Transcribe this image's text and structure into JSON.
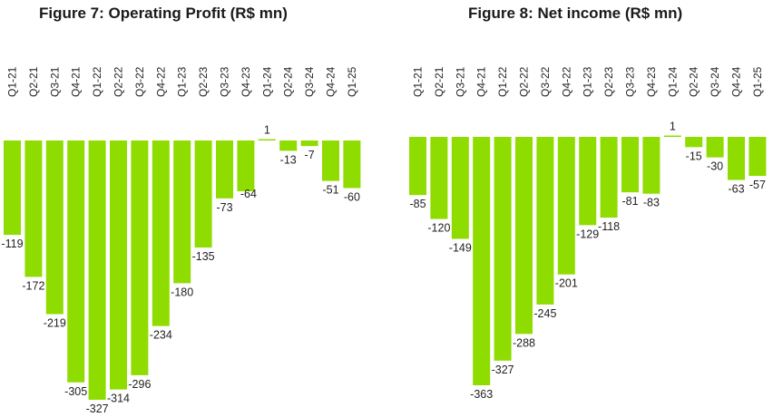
{
  "chart_data": [
    {
      "type": "bar",
      "title": "Figure 7: Operating Profit (R$ mn)",
      "categories": [
        "Q1-21",
        "Q2-21",
        "Q3-21",
        "Q4-21",
        "Q1-22",
        "Q2-22",
        "Q3-22",
        "Q4-22",
        "Q1-23",
        "Q2-23",
        "Q3-23",
        "Q4-23",
        "Q1-24",
        "Q2-24",
        "Q3-24",
        "Q4-24",
        "Q1-25"
      ],
      "values": [
        -119,
        -172,
        -219,
        -305,
        -327,
        -314,
        -296,
        -234,
        -180,
        -135,
        -73,
        -64,
        1,
        -13,
        -7,
        -51,
        -60
      ],
      "ylim": [
        -330,
        5
      ],
      "bar_color": "#8fdc00",
      "grid": false,
      "xlabel": "",
      "ylabel": ""
    },
    {
      "type": "bar",
      "title": "Figure 8: Net income (R$ mn)",
      "categories": [
        "Q1-21",
        "Q2-21",
        "Q3-21",
        "Q4-21",
        "Q1-22",
        "Q2-22",
        "Q3-22",
        "Q4-22",
        "Q1-23",
        "Q2-23",
        "Q3-23",
        "Q4-23",
        "Q1-24",
        "Q2-24",
        "Q3-24",
        "Q4-24",
        "Q1-25"
      ],
      "values": [
        -85,
        -120,
        -149,
        -363,
        -327,
        -288,
        -245,
        -201,
        -129,
        -118,
        -81,
        -83,
        1,
        -15,
        -30,
        -63,
        -57
      ],
      "ylim": [
        -365,
        5
      ],
      "bar_color": "#8fdc00",
      "grid": false,
      "xlabel": "",
      "ylabel": ""
    }
  ]
}
